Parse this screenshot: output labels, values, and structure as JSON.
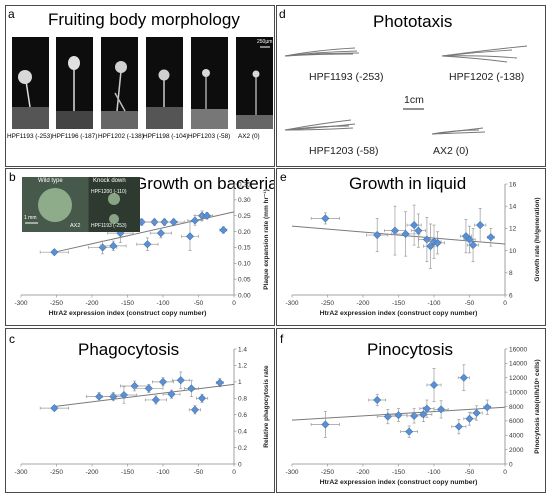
{
  "colors": {
    "marker": "#5b8fd4",
    "marker_edge": "#3e6fb0",
    "trend": "#7a7a7a",
    "error": "#9a9a9a"
  },
  "panel_a": {
    "letter": "a",
    "title": "Fruiting body morphology",
    "strains": [
      "HPF1193 (-253)",
      "HPF1196 (-187)",
      "HPF1202 (-138)",
      "HPF1198 (-104)",
      "HPF1203 (-58)",
      "AX2 (0)"
    ],
    "scale_label": "250μm"
  },
  "panel_d": {
    "letter": "d",
    "title": "Phototaxis",
    "labels": [
      "HPF1193 (-253)",
      "HPF1202 (-138)",
      "HPF1203 (-58)",
      "AX2 (0)"
    ],
    "scale_label": "1cm"
  },
  "inset_b": {
    "wild_type": "Wild type",
    "knock_down": "Knock down",
    "scale": "1 mm",
    "ax2": "AX2",
    "k1": "HPF1200 (-110)",
    "k2": "HPF1193 (-253)"
  },
  "chart_data": [
    {
      "id": "b",
      "letter": "b",
      "type": "scatter",
      "title": "Growth on bacteria",
      "xlabel": "HtrA2 expression index (construct copy number)",
      "ylabel": "Plaque expansion rate (mm hr⁻¹)",
      "xlim": [
        -300,
        0
      ],
      "ylim": [
        0,
        0.35
      ],
      "y_axis": "right",
      "xticks": [
        -300,
        -250,
        -200,
        -150,
        -100,
        -50,
        0
      ],
      "yticks": [
        0.0,
        0.05,
        0.1,
        0.15,
        0.2,
        0.25,
        0.3,
        0.35
      ],
      "ytick_labels": [
        "0.00",
        "0.05",
        "0.10",
        "0.15",
        "0.20",
        "0.25",
        "0.30",
        "0.35"
      ],
      "trend": [
        [
          -253,
          0.135
        ],
        [
          0,
          0.262
        ]
      ],
      "points": [
        {
          "x": -253,
          "y": 0.135,
          "xerr": 20,
          "yerr": 0.005
        },
        {
          "x": -185,
          "y": 0.15,
          "xerr": 20,
          "yerr": 0.02
        },
        {
          "x": -170,
          "y": 0.155,
          "xerr": 18,
          "yerr": 0.015
        },
        {
          "x": -160,
          "y": 0.195,
          "xerr": 18,
          "yerr": 0.03
        },
        {
          "x": -140,
          "y": 0.23,
          "xerr": 25,
          "yerr": 0.015
        },
        {
          "x": -130,
          "y": 0.23,
          "xerr": 20,
          "yerr": 0.01
        },
        {
          "x": -122,
          "y": 0.16,
          "xerr": 15,
          "yerr": 0.02
        },
        {
          "x": -112,
          "y": 0.23,
          "xerr": 15,
          "yerr": 0.01
        },
        {
          "x": -103,
          "y": 0.195,
          "xerr": 15,
          "yerr": 0.015
        },
        {
          "x": -98,
          "y": 0.23,
          "xerr": 18,
          "yerr": 0.01
        },
        {
          "x": -85,
          "y": 0.23,
          "xerr": 15,
          "yerr": 0.01
        },
        {
          "x": -62,
          "y": 0.185,
          "xerr": 12,
          "yerr": 0.045
        },
        {
          "x": -55,
          "y": 0.235,
          "xerr": 10,
          "yerr": 0.015
        },
        {
          "x": -45,
          "y": 0.25,
          "xerr": 10,
          "yerr": 0.015
        },
        {
          "x": -38,
          "y": 0.25,
          "xerr": 8,
          "yerr": 0.01
        },
        {
          "x": -15,
          "y": 0.205,
          "xerr": 5,
          "yerr": 0.01
        }
      ]
    },
    {
      "id": "e",
      "letter": "e",
      "type": "scatter",
      "title": "Growth in liquid",
      "xlabel": "HtrA2 expression index (construct copy number)",
      "ylabel": "Growth rate (hr/generation)",
      "xlim": [
        -300,
        0
      ],
      "ylim": [
        6,
        16
      ],
      "y_axis": "right",
      "xticks": [
        -300,
        -250,
        -200,
        -150,
        -100,
        -50,
        0
      ],
      "yticks": [
        6,
        8,
        10,
        12,
        14,
        16
      ],
      "ytick_labels": [
        "6",
        "8",
        "10",
        "12",
        "14",
        "16"
      ],
      "trend": [
        [
          -300,
          12.2
        ],
        [
          0,
          10.6
        ]
      ],
      "points": [
        {
          "x": -253,
          "y": 12.9,
          "xerr": 20,
          "yerr": 0.5
        },
        {
          "x": -180,
          "y": 11.4,
          "xerr": 15,
          "yerr": 1.5
        },
        {
          "x": -155,
          "y": 11.8,
          "xerr": 15,
          "yerr": 2.2
        },
        {
          "x": -140,
          "y": 11.5,
          "xerr": 20,
          "yerr": 2.0
        },
        {
          "x": -128,
          "y": 12.3,
          "xerr": 10,
          "yerr": 1.8
        },
        {
          "x": -122,
          "y": 11.8,
          "xerr": 10,
          "yerr": 1.5
        },
        {
          "x": -110,
          "y": 11.0,
          "xerr": 12,
          "yerr": 2.0
        },
        {
          "x": -105,
          "y": 10.4,
          "xerr": 10,
          "yerr": 2.0
        },
        {
          "x": -100,
          "y": 10.8,
          "xerr": 10,
          "yerr": 1.5
        },
        {
          "x": -95,
          "y": 10.7,
          "xerr": 10,
          "yerr": 1.0
        },
        {
          "x": -55,
          "y": 11.3,
          "xerr": 8,
          "yerr": 1.5
        },
        {
          "x": -50,
          "y": 11.0,
          "xerr": 8,
          "yerr": 1.2
        },
        {
          "x": -45,
          "y": 10.5,
          "xerr": 8,
          "yerr": 1.5
        },
        {
          "x": -35,
          "y": 12.3,
          "xerr": 8,
          "yerr": 1.5
        },
        {
          "x": -20,
          "y": 11.2,
          "xerr": 5,
          "yerr": 0.8
        }
      ]
    },
    {
      "id": "c",
      "letter": "c",
      "type": "scatter",
      "title": "Phagocytosis",
      "xlabel": "",
      "ylabel": "Relative phagocytosis rate",
      "xlim": [
        -300,
        0
      ],
      "ylim": [
        0,
        1.4
      ],
      "y_axis": "right",
      "xticks": [
        -300,
        -250,
        -200,
        -150,
        -100,
        -50,
        0
      ],
      "yticks": [
        0,
        0.2,
        0.4,
        0.6,
        0.8,
        1.0,
        1.2,
        1.4
      ],
      "ytick_labels": [
        "0",
        "0.2",
        "0.4",
        "0.6",
        "0.8",
        "1",
        "1.2",
        "1.4"
      ],
      "trend": [
        [
          -253,
          0.7
        ],
        [
          0,
          0.97
        ]
      ],
      "points": [
        {
          "x": -253,
          "y": 0.68,
          "xerr": 20,
          "yerr": 0.03
        },
        {
          "x": -190,
          "y": 0.82,
          "xerr": 18,
          "yerr": 0.05
        },
        {
          "x": -170,
          "y": 0.82,
          "xerr": 15,
          "yerr": 0.05
        },
        {
          "x": -155,
          "y": 0.84,
          "xerr": 18,
          "yerr": 0.1
        },
        {
          "x": -140,
          "y": 0.95,
          "xerr": 20,
          "yerr": 0.06
        },
        {
          "x": -120,
          "y": 0.92,
          "xerr": 20,
          "yerr": 0.05
        },
        {
          "x": -110,
          "y": 0.78,
          "xerr": 15,
          "yerr": 0.05
        },
        {
          "x": -100,
          "y": 1.0,
          "xerr": 15,
          "yerr": 0.05
        },
        {
          "x": -88,
          "y": 0.85,
          "xerr": 12,
          "yerr": 0.05
        },
        {
          "x": -75,
          "y": 1.02,
          "xerr": 12,
          "yerr": 0.1
        },
        {
          "x": -60,
          "y": 0.92,
          "xerr": 10,
          "yerr": 0.1
        },
        {
          "x": -55,
          "y": 0.66,
          "xerr": 8,
          "yerr": 0.05
        },
        {
          "x": -45,
          "y": 0.8,
          "xerr": 8,
          "yerr": 0.05
        },
        {
          "x": -20,
          "y": 0.99,
          "xerr": 5,
          "yerr": 0.05
        }
      ]
    },
    {
      "id": "f",
      "letter": "f",
      "type": "scatter",
      "title": "Pinocytosis",
      "xlabel": "HtrA2 expression index (construct copy number)",
      "ylabel": "Pinocytosis rate(nl/h/10⁶ cells)",
      "xlim": [
        -300,
        0
      ],
      "ylim": [
        0,
        16000
      ],
      "y_axis": "right",
      "xticks": [
        -300,
        -250,
        -200,
        -150,
        -100,
        -50,
        0
      ],
      "yticks": [
        0,
        2000,
        4000,
        6000,
        8000,
        10000,
        12000,
        14000,
        16000
      ],
      "ytick_labels": [
        "0",
        "2000",
        "4000",
        "6000",
        "8000",
        "10000",
        "12000",
        "14000",
        "16000"
      ],
      "trend": [
        [
          -300,
          6100
        ],
        [
          0,
          7900
        ]
      ],
      "points": [
        {
          "x": -253,
          "y": 5500,
          "xerr": 20,
          "yerr": 1800
        },
        {
          "x": -180,
          "y": 8900,
          "xerr": 12,
          "yerr": 800
        },
        {
          "x": -165,
          "y": 6600,
          "xerr": 15,
          "yerr": 1000
        },
        {
          "x": -150,
          "y": 6800,
          "xerr": 12,
          "yerr": 900
        },
        {
          "x": -135,
          "y": 4500,
          "xerr": 12,
          "yerr": 800
        },
        {
          "x": -128,
          "y": 6700,
          "xerr": 10,
          "yerr": 1000
        },
        {
          "x": -115,
          "y": 6900,
          "xerr": 12,
          "yerr": 1000
        },
        {
          "x": -110,
          "y": 7700,
          "xerr": 10,
          "yerr": 1200
        },
        {
          "x": -100,
          "y": 11000,
          "xerr": 10,
          "yerr": 2300
        },
        {
          "x": -90,
          "y": 7600,
          "xerr": 10,
          "yerr": 1200
        },
        {
          "x": -65,
          "y": 5200,
          "xerr": 10,
          "yerr": 1000
        },
        {
          "x": -58,
          "y": 12000,
          "xerr": 8,
          "yerr": 1800
        },
        {
          "x": -50,
          "y": 6300,
          "xerr": 8,
          "yerr": 900
        },
        {
          "x": -40,
          "y": 7100,
          "xerr": 8,
          "yerr": 1000
        },
        {
          "x": -25,
          "y": 7900,
          "xerr": 5,
          "yerr": 1000
        }
      ]
    }
  ]
}
